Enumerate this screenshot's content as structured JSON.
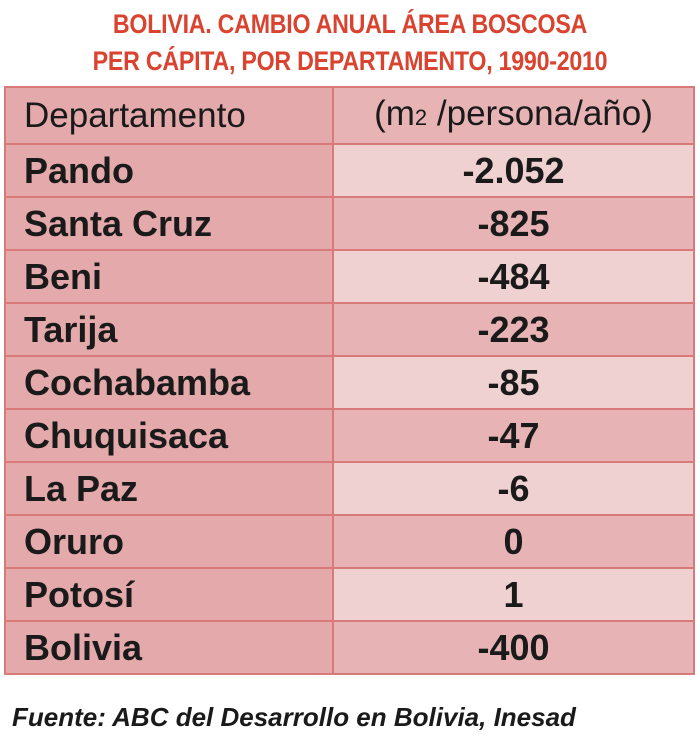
{
  "title": {
    "line1": "BOLIVIA. CAMBIO ANUAL ÁREA BOSCOSA",
    "line2": "PER CÁPITA, POR DEPARTAMENTO, 1990-2010"
  },
  "chart_data": {
    "type": "table",
    "columns": [
      "Departamento",
      "(m2 /persona/año)"
    ],
    "unit_header": {
      "prefix": "(m",
      "subscript": "2",
      "suffix": " /persona/año)"
    },
    "rows": [
      {
        "department": "Pando",
        "value_label": "-2.052",
        "value": -2052
      },
      {
        "department": "Santa Cruz",
        "value_label": "-825",
        "value": -825
      },
      {
        "department": "Beni",
        "value_label": "-484",
        "value": -484
      },
      {
        "department": "Tarija",
        "value_label": "-223",
        "value": -223
      },
      {
        "department": "Cochabamba",
        "value_label": "-85",
        "value": -85
      },
      {
        "department": "Chuquisaca",
        "value_label": "-47",
        "value": -47
      },
      {
        "department": "La Paz",
        "value_label": "-6",
        "value": -6
      },
      {
        "department": "Oruro",
        "value_label": "0",
        "value": 0
      },
      {
        "department": "Potosí",
        "value_label": "1",
        "value": 1
      },
      {
        "department": "Bolivia",
        "value_label": "-400",
        "value": -400
      }
    ]
  },
  "source": "Fuente: ABC del Desarrollo en Bolivia, Inesad",
  "colors": {
    "title": "#d9432f",
    "cell_border": "#d97a7a",
    "cell_dark": "#e7b3b4",
    "cell_light": "#f0d1d1",
    "text": "#1a1a1a"
  }
}
